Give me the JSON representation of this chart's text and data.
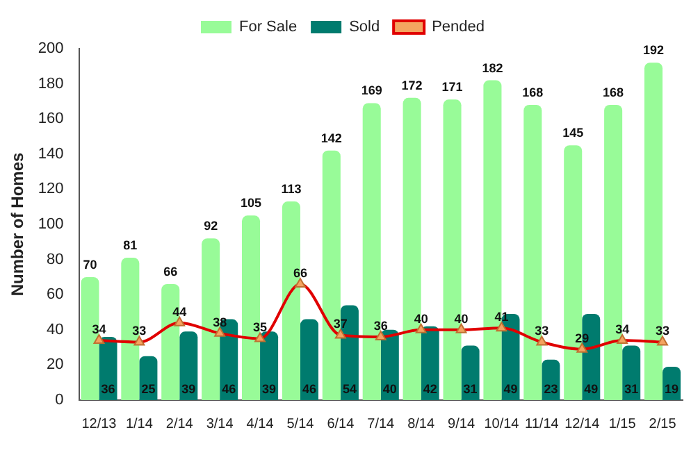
{
  "chart_data": {
    "type": "bar",
    "ylabel": "Number of Homes",
    "categories": [
      "12/13",
      "1/14",
      "2/14",
      "3/14",
      "4/14",
      "5/14",
      "6/14",
      "7/14",
      "8/14",
      "9/14",
      "10/14",
      "11/14",
      "12/14",
      "1/15",
      "2/15"
    ],
    "series": [
      {
        "name": "For Sale",
        "color": "#98fb98",
        "values": [
          70,
          81,
          66,
          92,
          105,
          113,
          142,
          169,
          172,
          171,
          182,
          168,
          145,
          168,
          192
        ]
      },
      {
        "name": "Sold",
        "color": "#007b6e",
        "values": [
          36,
          25,
          39,
          46,
          39,
          46,
          54,
          40,
          42,
          31,
          49,
          23,
          49,
          31,
          19
        ]
      },
      {
        "name": "Pended",
        "type": "line",
        "color": "#e00000",
        "values": [
          34,
          33,
          44,
          38,
          35,
          66,
          37,
          36,
          40,
          40,
          41,
          33,
          29,
          34,
          33
        ]
      }
    ],
    "ylim": [
      0,
      200
    ],
    "yticks": [
      0,
      20,
      40,
      60,
      80,
      100,
      120,
      140,
      160,
      180,
      200
    ],
    "grid": false,
    "legend": "top",
    "marker": "triangle",
    "data_labels": true
  }
}
